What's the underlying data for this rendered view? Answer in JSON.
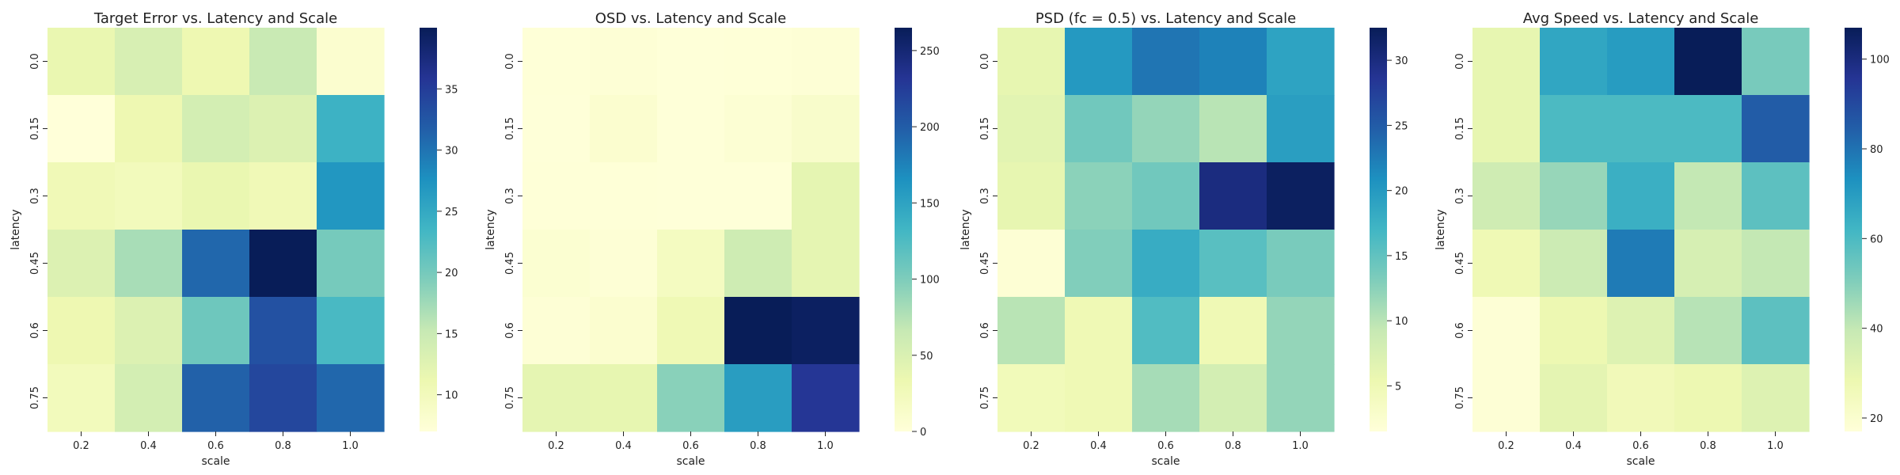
{
  "colormap": {
    "name": "YlGnBu",
    "stops": [
      "#ffffd9",
      "#edf8b1",
      "#c7e9b4",
      "#7fcdbb",
      "#41b6c4",
      "#1d91c0",
      "#225ea8",
      "#253494",
      "#081d58"
    ]
  },
  "chart_data": [
    {
      "type": "heatmap",
      "title": "Target Error vs. Latency and Scale",
      "xlabel": "scale",
      "ylabel": "latency",
      "x_categories": [
        "0.2",
        "0.4",
        "0.6",
        "0.8",
        "1.0"
      ],
      "y_categories": [
        "0.0",
        "0.15",
        "0.3",
        "0.45",
        "0.6",
        "0.75"
      ],
      "values": [
        [
          11.5,
          13.5,
          11.0,
          15.0,
          8.0
        ],
        [
          7.0,
          11.0,
          14.0,
          13.0,
          24.0
        ],
        [
          10.5,
          10.0,
          11.5,
          10.5,
          27.0
        ],
        [
          13.0,
          17.0,
          31.0,
          40.0,
          20.0
        ],
        [
          11.0,
          13.0,
          20.5,
          33.0,
          23.0
        ],
        [
          10.0,
          14.0,
          31.5,
          34.0,
          31.0
        ]
      ],
      "colorbar": {
        "min": 7,
        "max": 40,
        "ticks": [
          "10",
          "15",
          "20",
          "25",
          "30",
          "35"
        ]
      }
    },
    {
      "type": "heatmap",
      "title": "OSD vs. Latency and Scale",
      "xlabel": "scale",
      "ylabel": "latency",
      "x_categories": [
        "0.2",
        "0.4",
        "0.6",
        "0.8",
        "1.0"
      ],
      "y_categories": [
        "0.0",
        "0.15",
        "0.3",
        "0.45",
        "0.6",
        "0.75"
      ],
      "values": [
        [
          2,
          3,
          1,
          2,
          3
        ],
        [
          1,
          8,
          1,
          5,
          12
        ],
        [
          2,
          2,
          1,
          1,
          40
        ],
        [
          7,
          3,
          20,
          60,
          40
        ],
        [
          3,
          8,
          30,
          265,
          260
        ],
        [
          40,
          38,
          95,
          155,
          230
        ]
      ],
      "colorbar": {
        "min": 0,
        "max": 265,
        "ticks": [
          "0",
          "50",
          "100",
          "150",
          "200",
          "250"
        ]
      }
    },
    {
      "type": "heatmap",
      "title": "PSD (fc = 0.5) vs. Latency and Scale",
      "xlabel": "scale",
      "ylabel": "latency",
      "x_categories": [
        "0.2",
        "0.4",
        "0.6",
        "0.8",
        "1.0"
      ],
      "y_categories": [
        "0.0",
        "0.15",
        "0.3",
        "0.45",
        "0.6",
        "0.75"
      ],
      "values": [
        [
          6,
          20,
          23,
          22,
          19
        ],
        [
          6.5,
          14,
          12,
          10,
          19.5
        ],
        [
          6,
          12.5,
          14,
          30,
          32
        ],
        [
          2,
          13,
          18,
          15.5,
          13.5
        ],
        [
          10,
          5,
          16,
          5,
          12
        ],
        [
          4.5,
          5,
          11,
          8,
          12
        ]
      ],
      "colorbar": {
        "min": 1.5,
        "max": 32.5,
        "ticks": [
          "5",
          "10",
          "15",
          "20",
          "25",
          "30"
        ]
      }
    },
    {
      "type": "heatmap",
      "title": "Avg Speed vs. Latency and Scale",
      "xlabel": "scale",
      "ylabel": "latency",
      "x_categories": [
        "0.2",
        "0.4",
        "0.6",
        "0.8",
        "1.0"
      ],
      "y_categories": [
        "0.0",
        "0.15",
        "0.3",
        "0.45",
        "0.6",
        "0.75"
      ],
      "values": [
        [
          30,
          67,
          70,
          107,
          52
        ],
        [
          30,
          60,
          60,
          60,
          85
        ],
        [
          37,
          47,
          64,
          40,
          57
        ],
        [
          27,
          38,
          78,
          35,
          40
        ],
        [
          18,
          28,
          33,
          42,
          57
        ],
        [
          18,
          31,
          26,
          28,
          33
        ]
      ],
      "colorbar": {
        "min": 17,
        "max": 107,
        "ticks": [
          "20",
          "40",
          "60",
          "80",
          "100"
        ]
      }
    }
  ]
}
